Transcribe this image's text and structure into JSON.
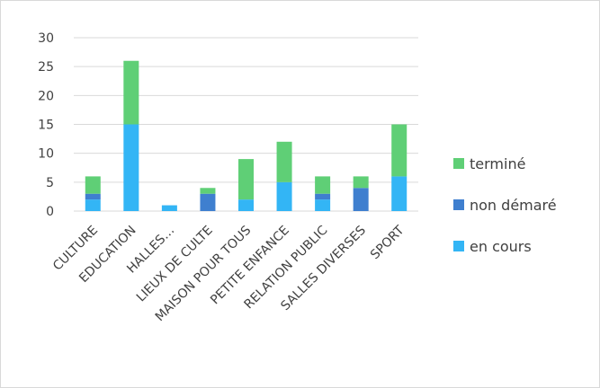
{
  "chart_data": {
    "type": "bar",
    "stacked": true,
    "categories": [
      "CULTURE",
      "EDUCATION",
      "HALLES…",
      "LIEUX DE CULTE",
      "MAISON POUR TOUS",
      "PETITE ENFANCE",
      "RELATION PUBLIC",
      "SALLES DIVERSES",
      "SPORT"
    ],
    "series": [
      {
        "name": "en cours",
        "color": "#33b5f5",
        "values": [
          2,
          15,
          1,
          0,
          2,
          5,
          2,
          0,
          6
        ]
      },
      {
        "name": "non démaré",
        "color": "#3f7fcf",
        "values": [
          1,
          0,
          0,
          3,
          0,
          0,
          1,
          4,
          0
        ]
      },
      {
        "name": "terminé",
        "color": "#5fcf76",
        "values": [
          3,
          11,
          0,
          1,
          7,
          7,
          3,
          2,
          9
        ]
      }
    ],
    "ylim": [
      0,
      30
    ],
    "yticks": [
      0,
      5,
      10,
      15,
      20,
      25,
      30
    ],
    "grid": true,
    "legend_position": "right",
    "legend_order": [
      "terminé",
      "non démaré",
      "en cours"
    ]
  }
}
